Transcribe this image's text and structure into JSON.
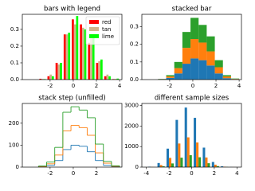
{
  "chart_data": [
    {
      "type": "histogram",
      "histtype": "bar",
      "stacked": false,
      "title": "bars with legend",
      "bins": [
        -3.0,
        -2.3,
        -1.6,
        -0.9,
        -0.2,
        0.5,
        1.2,
        1.9,
        2.6,
        3.3,
        4.0
      ],
      "series": [
        {
          "name": "red",
          "color": "#ff0000",
          "values": [
            0.005,
            0.02,
            0.1,
            0.27,
            0.36,
            0.33,
            0.22,
            0.1,
            0.02,
            0.003
          ]
        },
        {
          "name": "tan",
          "color": "#d2b48c",
          "values": [
            0.004,
            0.03,
            0.09,
            0.27,
            0.33,
            0.31,
            0.25,
            0.11,
            0.03,
            0.004
          ]
        },
        {
          "name": "lime",
          "color": "#00ff00",
          "values": [
            0.003,
            0.02,
            0.1,
            0.28,
            0.38,
            0.3,
            0.26,
            0.12,
            0.02,
            0.006
          ]
        }
      ],
      "xlim": [
        -4.4,
        4.2
      ],
      "xticks": [
        -2,
        0,
        2,
        4
      ],
      "ylim": [
        0,
        0.39
      ],
      "yticks": [
        {
          "value": 0,
          "label": "0.0"
        },
        0.1,
        0.2,
        0.3
      ],
      "legend": "upper right"
    },
    {
      "type": "histogram",
      "histtype": "bar",
      "stacked": true,
      "title": "stacked bar",
      "bins": [
        -3.0,
        -2.3,
        -1.6,
        -0.9,
        -0.2,
        0.5,
        1.2,
        1.9,
        2.6,
        3.3,
        4.0
      ],
      "series": [
        {
          "color": "#1f77b4",
          "values": [
            0.002,
            0.01,
            0.035,
            0.09,
            0.12,
            0.11,
            0.08,
            0.035,
            0.008,
            0.002
          ]
        },
        {
          "color": "#ff7f0e",
          "values": [
            0.001,
            0.008,
            0.03,
            0.09,
            0.11,
            0.1,
            0.08,
            0.035,
            0.01,
            0.002
          ]
        },
        {
          "color": "#2ca02c",
          "values": [
            0.001,
            0.007,
            0.035,
            0.09,
            0.12,
            0.1,
            0.085,
            0.04,
            0.007,
            0.002
          ]
        }
      ],
      "xlim": [
        -4.4,
        4.2
      ],
      "xticks": [
        -2,
        0,
        2,
        4
      ],
      "ylim": [
        0,
        0.37
      ],
      "yticks": [
        {
          "value": 0,
          "label": "0.0"
        },
        0.1,
        0.2,
        0.3
      ]
    },
    {
      "type": "histogram",
      "histtype": "step",
      "stacked": true,
      "title": "stack step (unfilled)",
      "bins": [
        -3.0,
        -2.3,
        -1.6,
        -0.9,
        -0.2,
        0.5,
        1.2,
        1.9,
        2.6,
        3.3,
        4.0
      ],
      "series": [
        {
          "color": "#1f77b4",
          "values": [
            2,
            8,
            30,
            80,
            100,
            95,
            70,
            30,
            8,
            2
          ]
        },
        {
          "color": "#ff7f0e",
          "values": [
            1,
            7,
            25,
            85,
            90,
            85,
            75,
            35,
            10,
            2
          ]
        },
        {
          "color": "#2ca02c",
          "values": [
            2,
            8,
            35,
            85,
            85,
            80,
            80,
            40,
            8,
            2
          ]
        }
      ],
      "xlim": [
        -4.4,
        4.2
      ],
      "xticks": [
        -2,
        0,
        2
      ],
      "ylim": [
        0,
        290
      ],
      "yticks": [
        0,
        100,
        200
      ]
    },
    {
      "type": "histogram",
      "histtype": "bar",
      "stacked": false,
      "title": "different sample sizes",
      "bins": [
        -3.9,
        -3.1,
        -2.3,
        -1.5,
        -0.7,
        0.1,
        0.9,
        1.7,
        2.5,
        3.3,
        4.1
      ],
      "series": [
        {
          "color": "#1f77b4",
          "values": [
            20,
            200,
            900,
            2300,
            2900,
            2400,
            950,
            250,
            40,
            5
          ]
        },
        {
          "color": "#ff7f0e",
          "values": [
            10,
            100,
            450,
            1150,
            1450,
            1200,
            470,
            120,
            20,
            3
          ]
        },
        {
          "color": "#2ca02c",
          "values": [
            4,
            40,
            180,
            460,
            580,
            480,
            190,
            50,
            8,
            1
          ]
        }
      ],
      "xlim": [
        -4.4,
        4.4
      ],
      "xticks": [
        -4,
        -2,
        0,
        2,
        4
      ],
      "ylim": [
        0,
        3100
      ],
      "yticks": [
        0,
        1000,
        2000,
        3000
      ]
    }
  ]
}
